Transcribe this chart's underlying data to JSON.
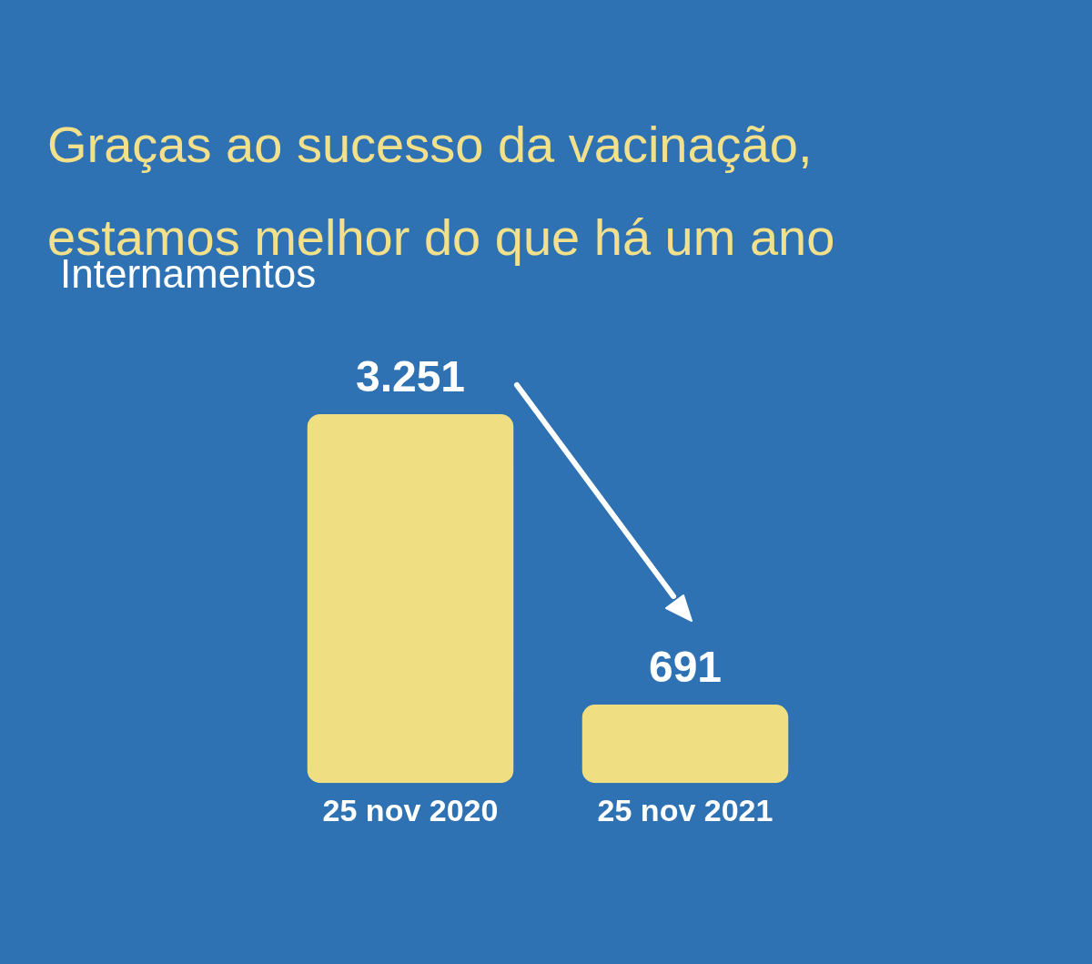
{
  "chart_data": {
    "type": "bar",
    "title": "Graças ao sucesso da vacinação, estamos melhor do que há um ano",
    "subtitle": "Internamentos",
    "categories": [
      "25 nov 2020",
      "25 nov 2021"
    ],
    "values": [
      3251,
      691
    ],
    "value_labels": [
      "3.251",
      "691"
    ],
    "color": "#f0df82",
    "grid": false,
    "legend": false
  }
}
